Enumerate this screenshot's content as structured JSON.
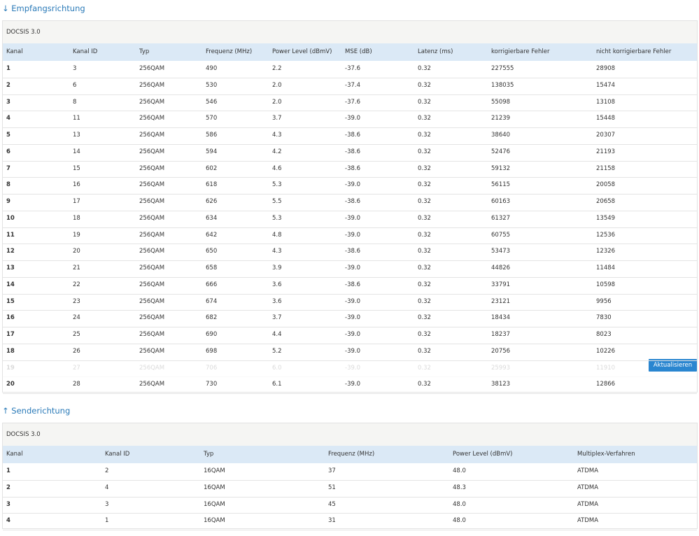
{
  "downstream": {
    "title": "↓ Empfangsrichtung",
    "caption": "DOCSIS 3.0",
    "columns": [
      "Kanal",
      "Kanal ID",
      "Typ",
      "Frequenz (MHz)",
      "Power Level (dBmV)",
      "MSE (dB)",
      "Latenz (ms)",
      "korrigierbare Fehler",
      "nicht korrigierbare Fehler"
    ],
    "rows": [
      [
        "1",
        "3",
        "256QAM",
        "490",
        "2.2",
        "-37.6",
        "0.32",
        "227555",
        "28908"
      ],
      [
        "2",
        "6",
        "256QAM",
        "530",
        "2.0",
        "-37.4",
        "0.32",
        "138035",
        "15474"
      ],
      [
        "3",
        "8",
        "256QAM",
        "546",
        "2.0",
        "-37.6",
        "0.32",
        "55098",
        "13108"
      ],
      [
        "4",
        "11",
        "256QAM",
        "570",
        "3.7",
        "-39.0",
        "0.32",
        "21239",
        "15448"
      ],
      [
        "5",
        "13",
        "256QAM",
        "586",
        "4.3",
        "-38.6",
        "0.32",
        "38640",
        "20307"
      ],
      [
        "6",
        "14",
        "256QAM",
        "594",
        "4.2",
        "-38.6",
        "0.32",
        "52476",
        "21193"
      ],
      [
        "7",
        "15",
        "256QAM",
        "602",
        "4.6",
        "-38.6",
        "0.32",
        "59132",
        "21158"
      ],
      [
        "8",
        "16",
        "256QAM",
        "618",
        "5.3",
        "-39.0",
        "0.32",
        "56115",
        "20058"
      ],
      [
        "9",
        "17",
        "256QAM",
        "626",
        "5.5",
        "-38.6",
        "0.32",
        "60163",
        "20658"
      ],
      [
        "10",
        "18",
        "256QAM",
        "634",
        "5.3",
        "-39.0",
        "0.32",
        "61327",
        "13549"
      ],
      [
        "11",
        "19",
        "256QAM",
        "642",
        "4.8",
        "-39.0",
        "0.32",
        "60755",
        "12536"
      ],
      [
        "12",
        "20",
        "256QAM",
        "650",
        "4.3",
        "-38.6",
        "0.32",
        "53473",
        "12326"
      ],
      [
        "13",
        "21",
        "256QAM",
        "658",
        "3.9",
        "-39.0",
        "0.32",
        "44826",
        "11484"
      ],
      [
        "14",
        "22",
        "256QAM",
        "666",
        "3.6",
        "-38.6",
        "0.32",
        "33791",
        "10598"
      ],
      [
        "15",
        "23",
        "256QAM",
        "674",
        "3.6",
        "-39.0",
        "0.32",
        "23121",
        "9956"
      ],
      [
        "16",
        "24",
        "256QAM",
        "682",
        "3.7",
        "-39.0",
        "0.32",
        "18434",
        "7830"
      ],
      [
        "17",
        "25",
        "256QAM",
        "690",
        "4.4",
        "-39.0",
        "0.32",
        "18237",
        "8023"
      ],
      [
        "18",
        "26",
        "256QAM",
        "698",
        "5.2",
        "-39.0",
        "0.32",
        "20756",
        "10226"
      ],
      [
        "19",
        "27",
        "256QAM",
        "706",
        "6.0",
        "-39.0",
        "0.32",
        "25993",
        "11910"
      ],
      [
        "20",
        "28",
        "256QAM",
        "730",
        "6.1",
        "-39.0",
        "0.32",
        "38123",
        "12866"
      ]
    ]
  },
  "button": {
    "label": "Aktualisieren"
  },
  "upstream": {
    "title": "↑ Senderichtung",
    "caption": "DOCSIS 3.0",
    "columns": [
      "Kanal",
      "Kanal ID",
      "Typ",
      "Frequenz (MHz)",
      "Power Level (dBmV)",
      "Multiplex-Verfahren"
    ],
    "rows": [
      [
        "1",
        "2",
        "16QAM",
        "37",
        "48.0",
        "ATDMA"
      ],
      [
        "2",
        "4",
        "16QAM",
        "51",
        "48.3",
        "ATDMA"
      ],
      [
        "3",
        "3",
        "16QAM",
        "45",
        "48.0",
        "ATDMA"
      ],
      [
        "4",
        "1",
        "16QAM",
        "31",
        "48.0",
        "ATDMA"
      ]
    ]
  }
}
